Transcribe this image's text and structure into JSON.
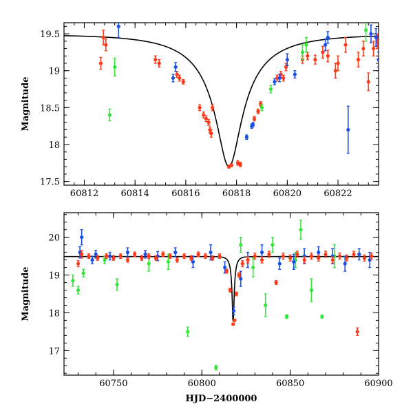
{
  "chart_data": [
    {
      "type": "scatter",
      "xlabel": "",
      "ylabel": "Magnitude",
      "xlim": [
        60811.2,
        60823.6
      ],
      "ylim": [
        19.65,
        17.45
      ],
      "y_inverted": true,
      "xticks": [
        60812,
        60814,
        60816,
        60818,
        60820,
        60822
      ],
      "yticks": [
        17.5,
        18,
        18.5,
        19,
        19.5
      ],
      "xtick_labels": [
        "60812",
        "60814",
        "60816",
        "60818",
        "60820",
        "60822"
      ],
      "ytick_labels": [
        "17.5",
        "18",
        "18.5",
        "19",
        "19.5"
      ],
      "model": {
        "t0": 60817.7,
        "peak_mag": 17.7,
        "base_mag": 19.49,
        "u0": 0.17,
        "tE": 2.9
      },
      "series": [
        {
          "color": "#ff3a1a",
          "points": [
            [
              60812.65,
              19.1,
              0.08
            ],
            [
              60812.75,
              19.45,
              0.1
            ],
            [
              60812.85,
              19.35,
              0.08
            ],
            [
              60814.8,
              19.15,
              0.05
            ],
            [
              60814.95,
              19.1,
              0.05
            ],
            [
              60815.65,
              18.95,
              0.04
            ],
            [
              60815.75,
              18.9,
              0.04
            ],
            [
              60815.9,
              18.85,
              0.03
            ],
            [
              60816.55,
              18.5,
              0.04
            ],
            [
              60816.7,
              18.4,
              0.04
            ],
            [
              60816.8,
              18.35,
              0.04
            ],
            [
              60816.9,
              18.3,
              0.04
            ],
            [
              60816.95,
              18.2,
              0.04
            ],
            [
              60817.0,
              18.15,
              0.05
            ],
            [
              60817.05,
              18.5,
              0.04
            ],
            [
              60817.7,
              17.7,
              0.02
            ],
            [
              60817.8,
              17.72,
              0.02
            ],
            [
              60818.05,
              17.75,
              0.03
            ],
            [
              60818.15,
              17.73,
              0.03
            ],
            [
              60818.7,
              18.35,
              0.03
            ],
            [
              60818.85,
              18.45,
              0.03
            ],
            [
              60818.95,
              18.55,
              0.03
            ],
            [
              60819.6,
              18.9,
              0.04
            ],
            [
              60819.75,
              18.95,
              0.04
            ],
            [
              60819.85,
              18.9,
              0.04
            ],
            [
              60819.95,
              19.05,
              0.05
            ],
            [
              60820.6,
              19.15,
              0.05
            ],
            [
              60820.8,
              19.2,
              0.05
            ],
            [
              60821.1,
              19.15,
              0.06
            ],
            [
              60821.4,
              19.25,
              0.08
            ],
            [
              60821.6,
              19.2,
              0.08
            ],
            [
              60821.9,
              19.0,
              0.1
            ],
            [
              60822.0,
              19.1,
              0.1
            ],
            [
              60822.3,
              19.35,
              0.1
            ],
            [
              60822.8,
              19.15,
              0.1
            ],
            [
              60823.0,
              19.3,
              0.1
            ],
            [
              60823.2,
              18.85,
              0.12
            ],
            [
              60823.4,
              19.3,
              0.1
            ],
            [
              60823.55,
              19.4,
              0.1
            ]
          ]
        },
        {
          "color": "#1a4ee6",
          "points": [
            [
              60813.35,
              19.6,
              0.15
            ],
            [
              60815.5,
              18.9,
              0.05
            ],
            [
              60815.6,
              19.05,
              0.06
            ],
            [
              60818.4,
              18.1,
              0.03
            ],
            [
              60818.6,
              18.25,
              0.03
            ],
            [
              60818.65,
              18.27,
              0.03
            ],
            [
              60819.5,
              18.85,
              0.04
            ],
            [
              60819.7,
              18.9,
              0.05
            ],
            [
              60820.0,
              19.15,
              0.08
            ],
            [
              60820.3,
              18.95,
              0.05
            ],
            [
              60821.5,
              19.35,
              0.08
            ],
            [
              60821.6,
              19.45,
              0.08
            ],
            [
              60822.4,
              18.2,
              0.32
            ],
            [
              60823.3,
              19.5,
              0.12
            ],
            [
              60823.5,
              19.45,
              0.12
            ],
            [
              60823.6,
              19.15,
              0.1
            ]
          ]
        },
        {
          "color": "#33e63a",
          "points": [
            [
              60813.0,
              18.4,
              0.08
            ],
            [
              60813.2,
              19.05,
              0.12
            ],
            [
              60819.0,
              18.5,
              0.04
            ],
            [
              60819.35,
              18.75,
              0.05
            ],
            [
              60820.6,
              19.25,
              0.1
            ],
            [
              60820.75,
              19.35,
              0.1
            ],
            [
              60823.1,
              19.55,
              0.15
            ]
          ]
        }
      ]
    },
    {
      "type": "scatter",
      "xlabel": "HJD−2400000",
      "ylabel": "Magnitude",
      "xlim": [
        60722,
        60900
      ],
      "ylim": [
        20.65,
        16.35
      ],
      "y_inverted": true,
      "xticks": [
        60750,
        60800,
        60850,
        60900
      ],
      "yticks": [
        17,
        18,
        19,
        20
      ],
      "xtick_labels": [
        "60750",
        "60800",
        "60850",
        "60900"
      ],
      "ytick_labels": [
        "17",
        "18",
        "19",
        "20"
      ],
      "model": {
        "t0": 60817.7,
        "peak_mag": 17.7,
        "base_mag": 19.49,
        "u0": 0.17,
        "tE": 2.9
      },
      "series": [
        {
          "color": "#33e63a",
          "points": [
            [
              60727,
              18.85,
              0.15
            ],
            [
              60730,
              18.6,
              0.1
            ],
            [
              60733,
              19.05,
              0.1
            ],
            [
              60745,
              19.4,
              0.1
            ],
            [
              60752,
              18.75,
              0.15
            ],
            [
              60770,
              19.3,
              0.2
            ],
            [
              60781,
              19.35,
              0.2
            ],
            [
              60792,
              17.5,
              0.12
            ],
            [
              60808,
              16.55,
              0.06
            ],
            [
              60822,
              19.8,
              0.2
            ],
            [
              60829,
              19.2,
              0.25
            ],
            [
              60836,
              18.2,
              0.3
            ],
            [
              60840,
              19.8,
              0.2
            ],
            [
              60848,
              17.9,
              0.05
            ],
            [
              60853,
              19.4,
              0.2
            ],
            [
              60856,
              20.2,
              0.25
            ],
            [
              60862,
              18.6,
              0.3
            ],
            [
              60868,
              17.9,
              0.04
            ],
            [
              60875,
              19.5,
              0.3
            ]
          ]
        },
        {
          "color": "#1a4ee6",
          "points": [
            [
              60731,
              19.6,
              0.15
            ],
            [
              60732,
              20.0,
              0.2
            ],
            [
              60738,
              19.4,
              0.1
            ],
            [
              60740,
              19.55,
              0.1
            ],
            [
              60748,
              19.5,
              0.1
            ],
            [
              60758,
              19.6,
              0.12
            ],
            [
              60768,
              19.55,
              0.1
            ],
            [
              60775,
              19.5,
              0.12
            ],
            [
              60785,
              19.6,
              0.12
            ],
            [
              60795,
              19.35,
              0.15
            ],
            [
              60805,
              19.6,
              0.2
            ],
            [
              60813,
              19.2,
              0.15
            ],
            [
              60818,
              18.05,
              0.1
            ],
            [
              60822,
              18.9,
              0.2
            ],
            [
              60826,
              19.4,
              0.2
            ],
            [
              60834,
              19.6,
              0.2
            ],
            [
              60844,
              19.3,
              0.15
            ],
            [
              60852,
              19.35,
              0.2
            ],
            [
              60858,
              19.5,
              0.2
            ],
            [
              60866,
              19.6,
              0.15
            ],
            [
              60874,
              19.5,
              0.2
            ],
            [
              60881,
              19.3,
              0.2
            ],
            [
              60889,
              19.55,
              0.15
            ],
            [
              60895,
              19.4,
              0.2
            ]
          ]
        },
        {
          "color": "#ff3a1a",
          "points": [
            [
              60730,
              19.3,
              0.08
            ],
            [
              60732,
              19.55,
              0.1
            ],
            [
              60736,
              19.5,
              0.06
            ],
            [
              60741,
              19.45,
              0.06
            ],
            [
              60746,
              19.5,
              0.06
            ],
            [
              60750,
              19.45,
              0.06
            ],
            [
              60754,
              19.5,
              0.06
            ],
            [
              60758,
              19.4,
              0.06
            ],
            [
              60762,
              19.55,
              0.06
            ],
            [
              60766,
              19.45,
              0.06
            ],
            [
              60770,
              19.5,
              0.06
            ],
            [
              60774,
              19.45,
              0.06
            ],
            [
              60778,
              19.55,
              0.06
            ],
            [
              60782,
              19.5,
              0.06
            ],
            [
              60786,
              19.4,
              0.06
            ],
            [
              60790,
              19.5,
              0.06
            ],
            [
              60794,
              19.45,
              0.06
            ],
            [
              60798,
              19.55,
              0.06
            ],
            [
              60802,
              19.5,
              0.06
            ],
            [
              60806,
              19.45,
              0.06
            ],
            [
              60810,
              19.5,
              0.06
            ],
            [
              60814,
              19.1,
              0.05
            ],
            [
              60816,
              18.6,
              0.05
            ],
            [
              60817.7,
              17.7,
              0.03
            ],
            [
              60818.5,
              17.8,
              0.03
            ],
            [
              60819.5,
              18.5,
              0.05
            ],
            [
              60821,
              19.0,
              0.06
            ],
            [
              60823,
              19.3,
              0.08
            ],
            [
              60826,
              19.4,
              0.08
            ],
            [
              60830,
              19.5,
              0.08
            ],
            [
              60834,
              19.4,
              0.08
            ],
            [
              60838,
              19.55,
              0.08
            ],
            [
              60842,
              18.8,
              0.05
            ],
            [
              60846,
              19.5,
              0.08
            ],
            [
              60850,
              19.45,
              0.08
            ],
            [
              60854,
              19.55,
              0.08
            ],
            [
              60858,
              19.4,
              0.08
            ],
            [
              60862,
              19.5,
              0.08
            ],
            [
              60866,
              19.45,
              0.08
            ],
            [
              60870,
              19.55,
              0.08
            ],
            [
              60874,
              19.4,
              0.08
            ],
            [
              60878,
              19.5,
              0.08
            ],
            [
              60882,
              19.45,
              0.08
            ],
            [
              60886,
              19.55,
              0.08
            ],
            [
              60888,
              17.5,
              0.1
            ],
            [
              60892,
              19.45,
              0.08
            ],
            [
              60896,
              19.5,
              0.08
            ]
          ]
        }
      ]
    }
  ]
}
